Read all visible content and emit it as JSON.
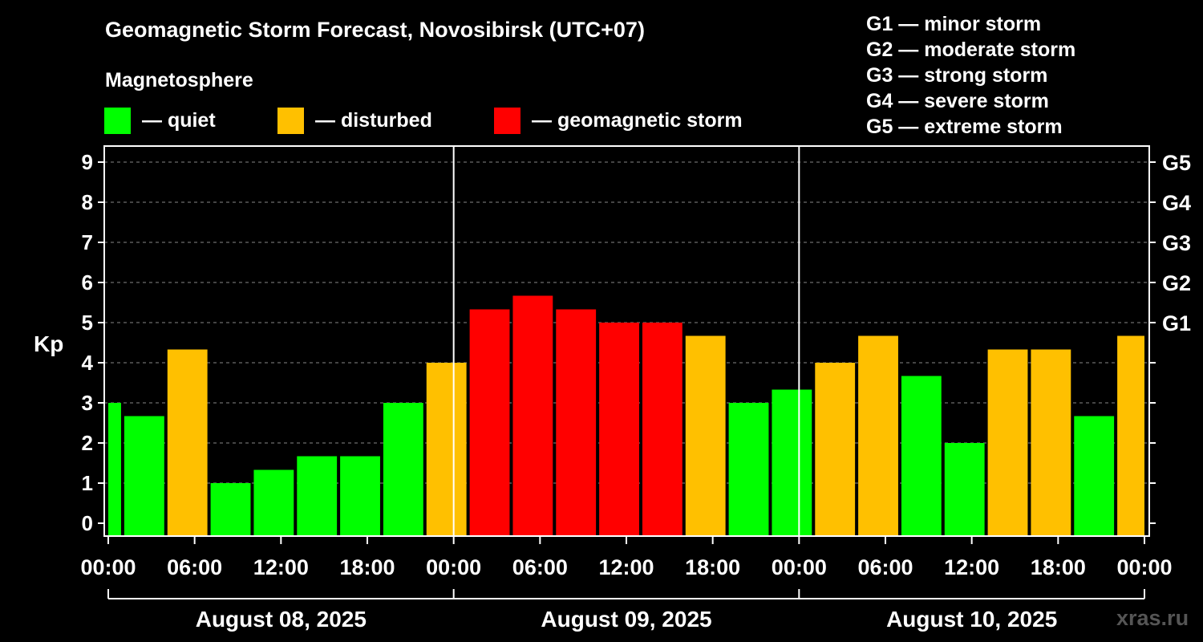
{
  "chart_data": {
    "type": "bar",
    "title": "Geomagnetic Storm Forecast, Novosibirsk (UTC+07)",
    "subtitle": "Magnetosphere",
    "ylabel": "Kp",
    "ylim": [
      0,
      9
    ],
    "yticks": [
      "0",
      "1",
      "2",
      "3",
      "4",
      "5",
      "6",
      "7",
      "8",
      "9"
    ],
    "right_ticks": [
      {
        "kp": 5,
        "label": "G1"
      },
      {
        "kp": 6,
        "label": "G2"
      },
      {
        "kp": 7,
        "label": "G3"
      },
      {
        "kp": 8,
        "label": "G4"
      },
      {
        "kp": 9,
        "label": "G5"
      }
    ],
    "legend": [
      {
        "label": "— quiet",
        "color": "#00ff00"
      },
      {
        "label": "— disturbed",
        "color": "#ffc000"
      },
      {
        "label": "— geomagnetic storm",
        "color": "#ff0000"
      }
    ],
    "storm_scale": [
      "G1 — minor storm",
      "G2 — moderate storm",
      "G3 — strong storm",
      "G4 — severe storm",
      "G5 — extreme storm"
    ],
    "x_hours": [
      0,
      72
    ],
    "xticks": [
      {
        "h": 0,
        "label": "00:00"
      },
      {
        "h": 6,
        "label": "06:00"
      },
      {
        "h": 12,
        "label": "12:00"
      },
      {
        "h": 18,
        "label": "18:00"
      },
      {
        "h": 24,
        "label": "00:00"
      },
      {
        "h": 30,
        "label": "06:00"
      },
      {
        "h": 36,
        "label": "12:00"
      },
      {
        "h": 42,
        "label": "18:00"
      },
      {
        "h": 48,
        "label": "00:00"
      },
      {
        "h": 54,
        "label": "06:00"
      },
      {
        "h": 60,
        "label": "12:00"
      },
      {
        "h": 66,
        "label": "18:00"
      },
      {
        "h": 72,
        "label": "00:00"
      }
    ],
    "days": [
      {
        "label": "August 08, 2025",
        "start": 0,
        "end": 24
      },
      {
        "label": "August 09, 2025",
        "start": 24,
        "end": 48
      },
      {
        "label": "August 10, 2025",
        "start": 48,
        "end": 72
      }
    ],
    "bars": [
      {
        "start": 0,
        "end": 1,
        "kp": 3.0,
        "status": "quiet"
      },
      {
        "start": 1,
        "end": 4,
        "kp": 2.67,
        "status": "quiet"
      },
      {
        "start": 4,
        "end": 7,
        "kp": 4.33,
        "status": "disturbed"
      },
      {
        "start": 7,
        "end": 10,
        "kp": 1.0,
        "status": "quiet"
      },
      {
        "start": 10,
        "end": 13,
        "kp": 1.33,
        "status": "quiet"
      },
      {
        "start": 13,
        "end": 16,
        "kp": 1.67,
        "status": "quiet"
      },
      {
        "start": 16,
        "end": 19,
        "kp": 1.67,
        "status": "quiet"
      },
      {
        "start": 19,
        "end": 22,
        "kp": 3.0,
        "status": "quiet"
      },
      {
        "start": 22,
        "end": 25,
        "kp": 4.0,
        "status": "disturbed"
      },
      {
        "start": 25,
        "end": 28,
        "kp": 5.33,
        "status": "storm"
      },
      {
        "start": 28,
        "end": 31,
        "kp": 5.67,
        "status": "storm"
      },
      {
        "start": 31,
        "end": 34,
        "kp": 5.33,
        "status": "storm"
      },
      {
        "start": 34,
        "end": 37,
        "kp": 5.0,
        "status": "storm"
      },
      {
        "start": 37,
        "end": 40,
        "kp": 5.0,
        "status": "storm"
      },
      {
        "start": 40,
        "end": 43,
        "kp": 4.67,
        "status": "disturbed"
      },
      {
        "start": 43,
        "end": 46,
        "kp": 3.0,
        "status": "quiet"
      },
      {
        "start": 46,
        "end": 49,
        "kp": 3.33,
        "status": "quiet"
      },
      {
        "start": 49,
        "end": 52,
        "kp": 4.0,
        "status": "disturbed"
      },
      {
        "start": 52,
        "end": 55,
        "kp": 4.67,
        "status": "disturbed"
      },
      {
        "start": 55,
        "end": 58,
        "kp": 3.67,
        "status": "quiet"
      },
      {
        "start": 58,
        "end": 61,
        "kp": 2.0,
        "status": "quiet"
      },
      {
        "start": 61,
        "end": 64,
        "kp": 4.33,
        "status": "disturbed"
      },
      {
        "start": 64,
        "end": 67,
        "kp": 4.33,
        "status": "disturbed"
      },
      {
        "start": 67,
        "end": 70,
        "kp": 2.67,
        "status": "quiet"
      },
      {
        "start": 70,
        "end": 72,
        "kp": 4.67,
        "status": "disturbed"
      }
    ],
    "colors": {
      "quiet": "#00ff00",
      "disturbed": "#ffc000",
      "storm": "#ff0000"
    }
  },
  "watermark": "xras.ru"
}
